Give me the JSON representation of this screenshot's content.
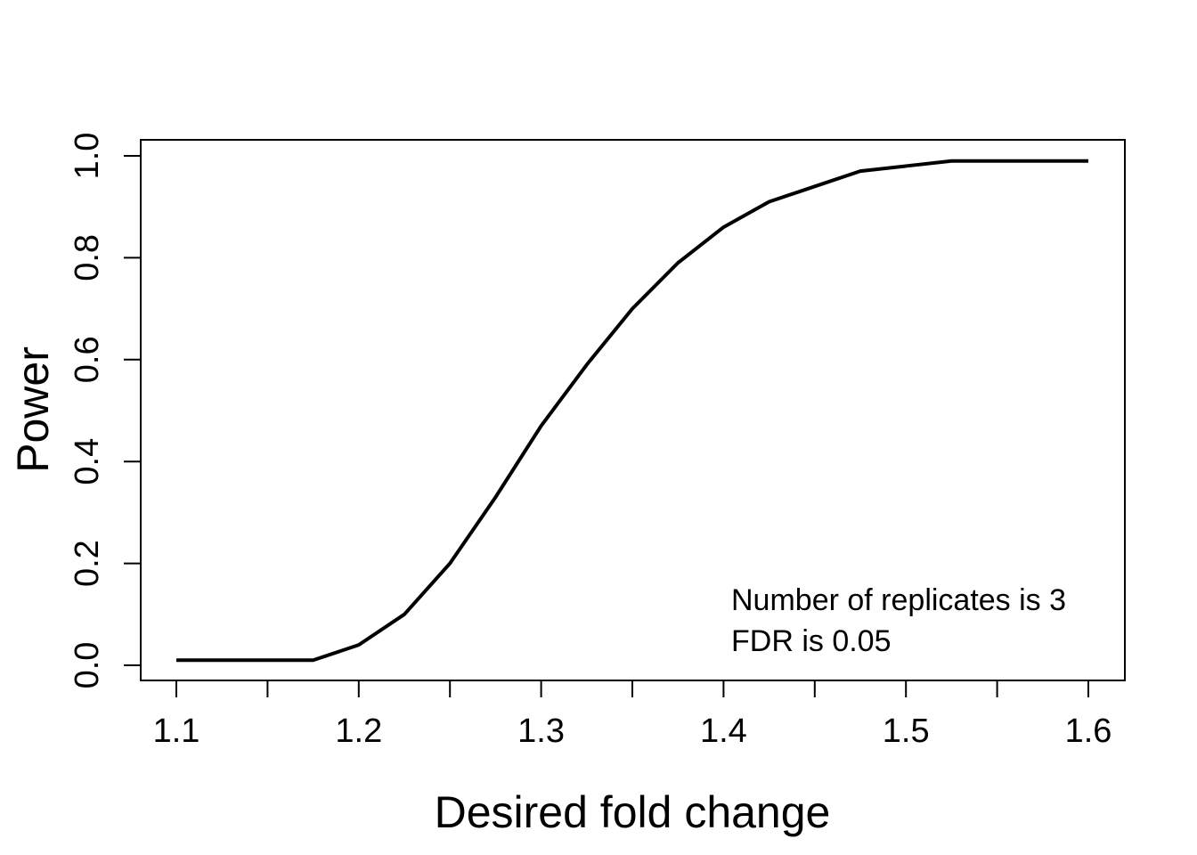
{
  "chart_data": {
    "type": "line",
    "title": "",
    "xlabel": "Desired fold change",
    "ylabel": "Power",
    "xlim": [
      1.1,
      1.6
    ],
    "ylim": [
      0.0,
      1.0
    ],
    "x_ticks": [
      1.1,
      1.15,
      1.2,
      1.25,
      1.3,
      1.35,
      1.4,
      1.45,
      1.5,
      1.55,
      1.6
    ],
    "x_tick_labels": [
      "1.1",
      "",
      "1.2",
      "",
      "1.3",
      "",
      "1.4",
      "",
      "1.5",
      "",
      "1.6"
    ],
    "y_ticks": [
      0.0,
      0.2,
      0.4,
      0.6,
      0.8,
      1.0
    ],
    "y_tick_labels": [
      "0.0",
      "0.2",
      "0.4",
      "0.6",
      "0.8",
      "1.0"
    ],
    "grid": false,
    "line_color": "#000000",
    "series": [
      {
        "x": [
          1.1,
          1.125,
          1.15,
          1.175,
          1.2,
          1.225,
          1.25,
          1.275,
          1.3,
          1.325,
          1.35,
          1.375,
          1.4,
          1.425,
          1.45,
          1.475,
          1.5,
          1.525,
          1.55,
          1.575,
          1.6
        ],
        "values": [
          0.01,
          0.01,
          0.01,
          0.01,
          0.04,
          0.1,
          0.2,
          0.33,
          0.47,
          0.59,
          0.7,
          0.79,
          0.86,
          0.91,
          0.94,
          0.97,
          0.98,
          0.99,
          0.99,
          0.99,
          0.99
        ]
      }
    ],
    "annotations": [
      "Number of replicates is 3",
      "FDR is 0.05"
    ]
  }
}
